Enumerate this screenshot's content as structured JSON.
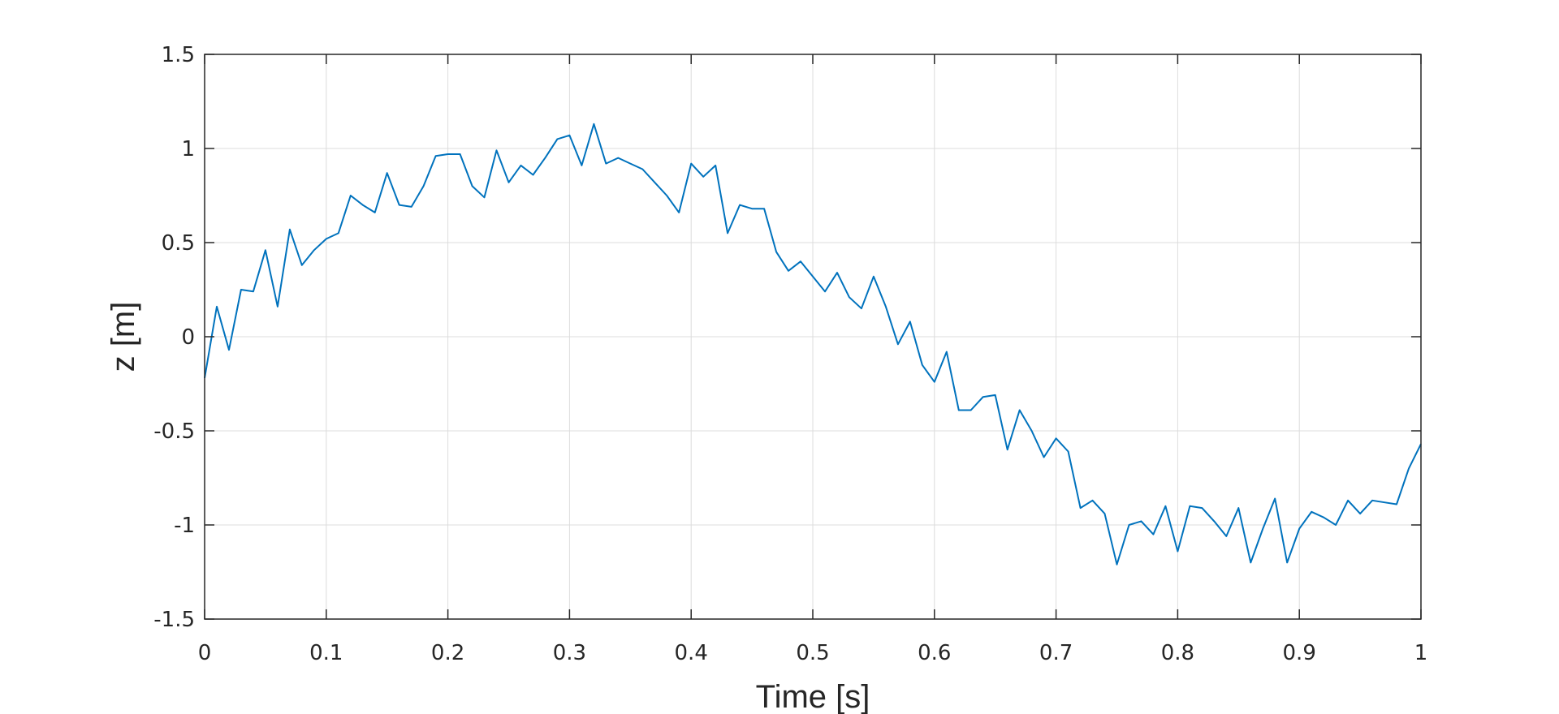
{
  "chart_data": {
    "type": "line",
    "title": "",
    "xlabel": "Time [s]",
    "ylabel": "z [m]",
    "xlim": [
      0,
      1
    ],
    "ylim": [
      -1.5,
      1.5
    ],
    "grid": true,
    "line_color": "#0072bd",
    "x_ticks": [
      {
        "value": 0,
        "label": "0"
      },
      {
        "value": 0.1,
        "label": "0.1"
      },
      {
        "value": 0.2,
        "label": "0.2"
      },
      {
        "value": 0.3,
        "label": "0.3"
      },
      {
        "value": 0.4,
        "label": "0.4"
      },
      {
        "value": 0.5,
        "label": "0.5"
      },
      {
        "value": 0.6,
        "label": "0.6"
      },
      {
        "value": 0.7,
        "label": "0.7"
      },
      {
        "value": 0.8,
        "label": "0.8"
      },
      {
        "value": 0.9,
        "label": "0.9"
      },
      {
        "value": 1,
        "label": "1"
      }
    ],
    "y_ticks": [
      {
        "value": 1.5,
        "label": "1.5"
      },
      {
        "value": 1,
        "label": "1"
      },
      {
        "value": 0.5,
        "label": "0.5"
      },
      {
        "value": 0,
        "label": "0"
      },
      {
        "value": -0.5,
        "label": "-0.5"
      },
      {
        "value": -1,
        "label": "-1"
      },
      {
        "value": -1.5,
        "label": "-1.5"
      }
    ],
    "series": [
      {
        "x": [
          0,
          0.01,
          0.02,
          0.03,
          0.04,
          0.05,
          0.06,
          0.07,
          0.08,
          0.09,
          0.1,
          0.11,
          0.12,
          0.13,
          0.14,
          0.15,
          0.16,
          0.17,
          0.18,
          0.19,
          0.2,
          0.21,
          0.22,
          0.23,
          0.24,
          0.25,
          0.26,
          0.27,
          0.28,
          0.29,
          0.3,
          0.31,
          0.32,
          0.33,
          0.34,
          0.35,
          0.36,
          0.37,
          0.38,
          0.39,
          0.4,
          0.41,
          0.42,
          0.43,
          0.44,
          0.45,
          0.46,
          0.47,
          0.48,
          0.49,
          0.5,
          0.51,
          0.52,
          0.53,
          0.54,
          0.55,
          0.56,
          0.57,
          0.58,
          0.59,
          0.6,
          0.61,
          0.62,
          0.63,
          0.64,
          0.65,
          0.66,
          0.67,
          0.68,
          0.69,
          0.7,
          0.71,
          0.72,
          0.73,
          0.74,
          0.75,
          0.76,
          0.77,
          0.78,
          0.79,
          0.8,
          0.81,
          0.82,
          0.83,
          0.84,
          0.85,
          0.86,
          0.87,
          0.88,
          0.89,
          0.9,
          0.91,
          0.92,
          0.93,
          0.94,
          0.95,
          0.96,
          0.97,
          0.98,
          0.99,
          1.0
        ],
        "values": [
          -0.22,
          0.16,
          -0.07,
          0.25,
          0.24,
          0.46,
          0.16,
          0.57,
          0.38,
          0.46,
          0.52,
          0.55,
          0.75,
          0.7,
          0.66,
          0.87,
          0.7,
          0.69,
          0.8,
          0.96,
          0.97,
          0.97,
          0.8,
          0.74,
          0.99,
          0.82,
          0.91,
          0.86,
          0.95,
          1.05,
          1.07,
          0.91,
          1.13,
          0.92,
          0.95,
          0.92,
          0.89,
          0.82,
          0.75,
          0.66,
          0.92,
          0.85,
          0.91,
          0.55,
          0.7,
          0.68,
          0.68,
          0.45,
          0.35,
          0.4,
          0.32,
          0.24,
          0.34,
          0.21,
          0.15,
          0.32,
          0.16,
          -0.04,
          0.08,
          -0.15,
          -0.24,
          -0.08,
          -0.39,
          -0.39,
          -0.32,
          -0.31,
          -0.6,
          -0.39,
          -0.5,
          -0.64,
          -0.54,
          -0.61,
          -0.91,
          -0.87,
          -0.94,
          -1.21,
          -1.0,
          -0.98,
          -1.05,
          -0.9,
          -1.14,
          -0.9,
          -0.91,
          -0.98,
          -1.06,
          -0.91,
          -1.2,
          -1.02,
          -0.86,
          -1.2,
          -1.02,
          -0.93,
          -0.96,
          -1.0,
          -0.87,
          -0.94,
          -0.87,
          -0.88,
          -0.89,
          -0.7,
          -0.57
        ]
      }
    ]
  }
}
